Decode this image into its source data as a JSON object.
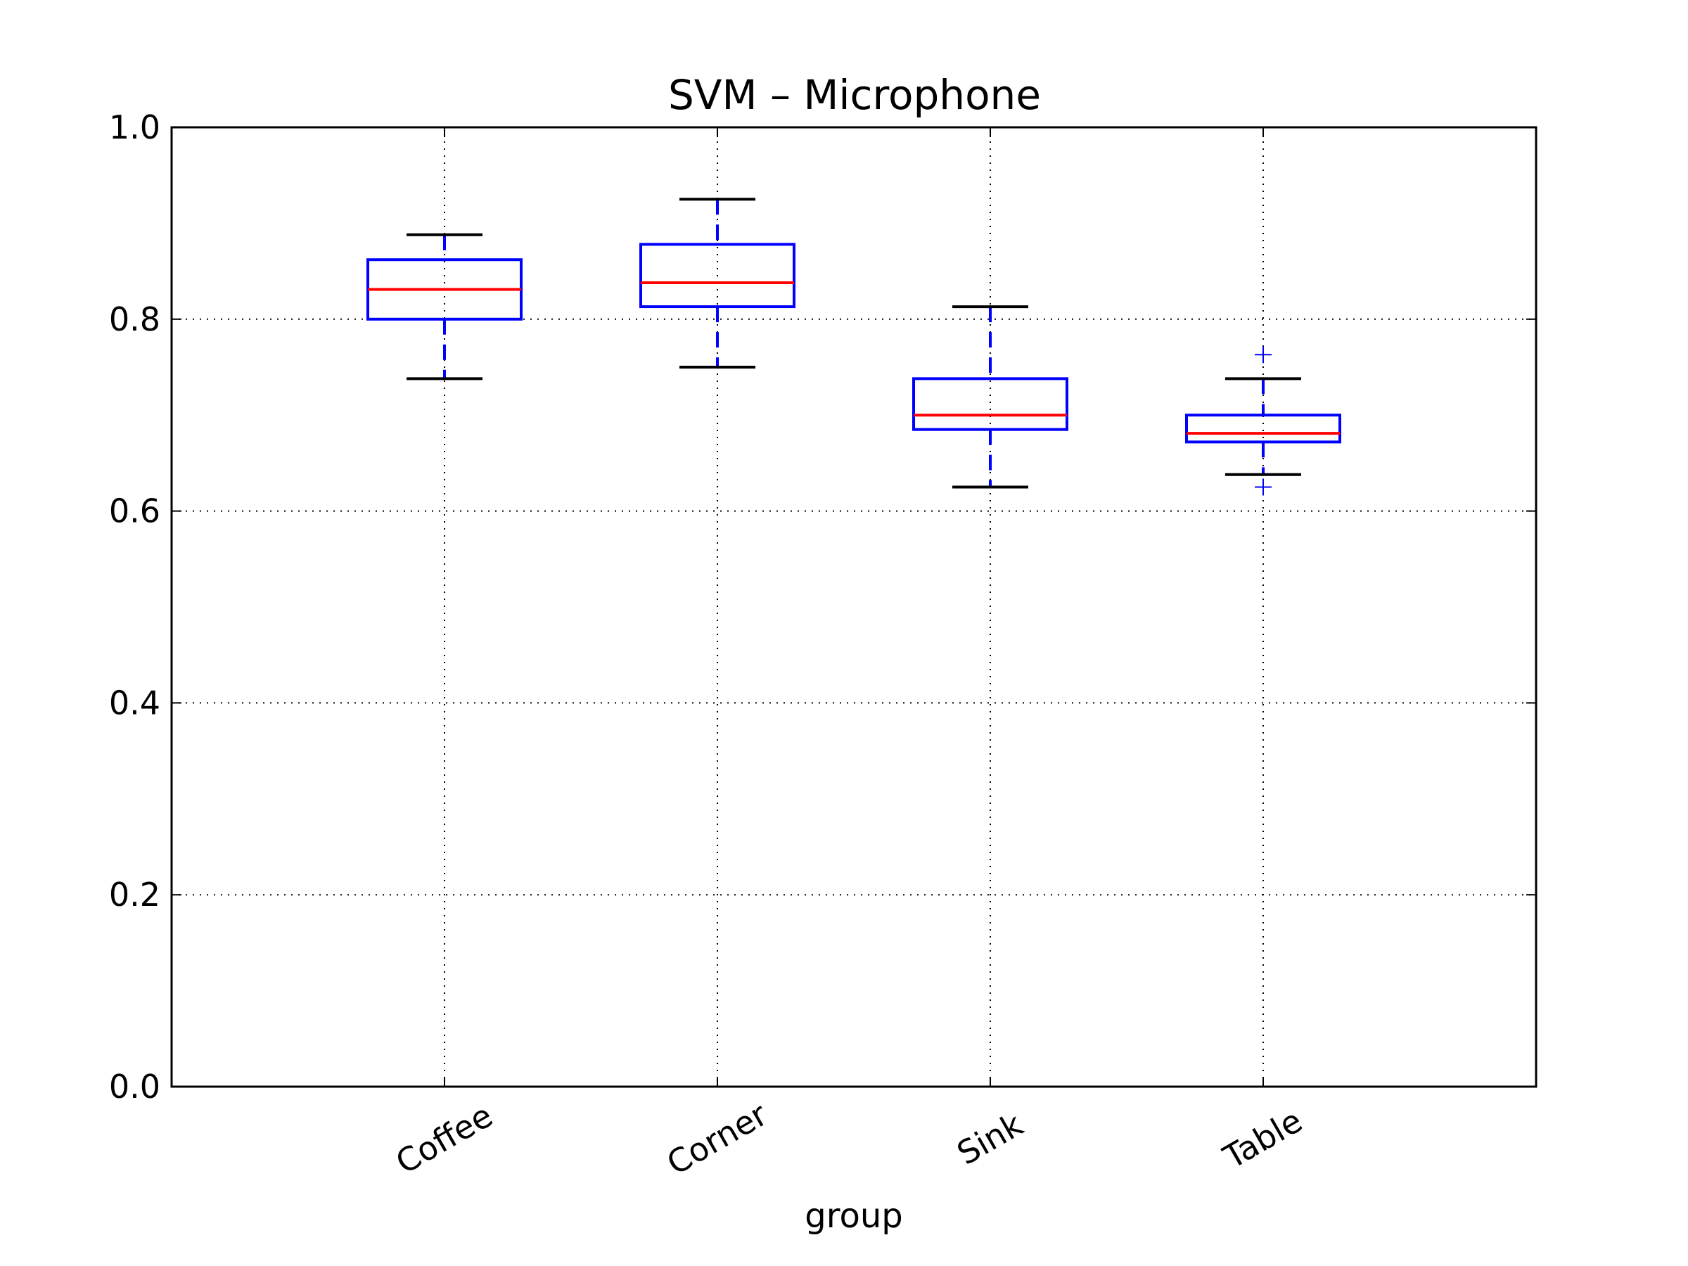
{
  "chart_data": {
    "type": "box",
    "title": "SVM – Microphone",
    "xlabel": "group",
    "ylabel": "",
    "ylim": [
      0.0,
      1.0
    ],
    "yticks": [
      "0.0",
      "0.2",
      "0.4",
      "0.6",
      "0.8",
      "1.0"
    ],
    "grid": true,
    "categories": [
      "Coffee",
      "Corner",
      "Sink",
      "Table"
    ],
    "boxes": [
      {
        "category": "Coffee",
        "whisker_low": 0.738,
        "q1": 0.8,
        "median": 0.831,
        "q3": 0.862,
        "whisker_high": 0.888,
        "outliers": []
      },
      {
        "category": "Corner",
        "whisker_low": 0.75,
        "q1": 0.813,
        "median": 0.838,
        "q3": 0.878,
        "whisker_high": 0.925,
        "outliers": []
      },
      {
        "category": "Sink",
        "whisker_low": 0.625,
        "q1": 0.685,
        "median": 0.7,
        "q3": 0.738,
        "whisker_high": 0.813,
        "outliers": []
      },
      {
        "category": "Table",
        "whisker_low": 0.638,
        "q1": 0.672,
        "median": 0.681,
        "q3": 0.7,
        "whisker_high": 0.738,
        "outliers": [
          0.763,
          0.625
        ]
      }
    ],
    "colors": {
      "box": "#0000ff",
      "median": "#ff0000",
      "whisker_cap": "#000000",
      "outlier": "#0000ff"
    }
  }
}
